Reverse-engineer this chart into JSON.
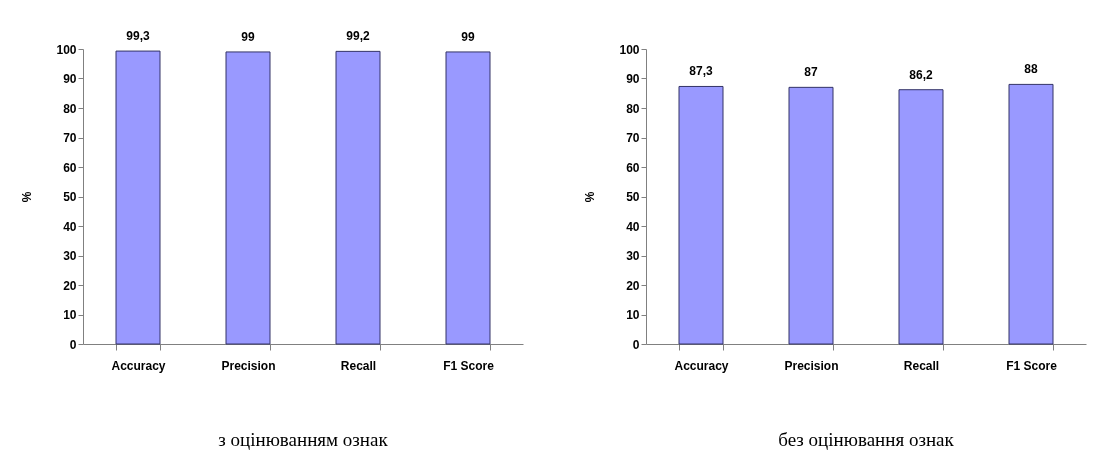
{
  "chart_data": [
    {
      "type": "bar",
      "title": "з оцінюванням ознак",
      "ylabel": "%",
      "categories": [
        "Accuracy",
        "Precision",
        "Recall",
        "F1 Score"
      ],
      "values": [
        99.3,
        99,
        99.2,
        99
      ],
      "value_labels": [
        "99,3",
        "99",
        "99,2",
        "99"
      ],
      "color": "#9999ff",
      "ylim": [
        0,
        100
      ],
      "yticks": [
        0,
        10,
        20,
        30,
        40,
        50,
        60,
        70,
        80,
        90,
        100
      ],
      "grid": false
    },
    {
      "type": "bar",
      "title": "без оцінювання ознак",
      "ylabel": "%",
      "categories": [
        "Accuracy",
        "Precision",
        "Recall",
        "F1 Score"
      ],
      "values": [
        87.3,
        87,
        86.2,
        88
      ],
      "value_labels": [
        "87,3",
        "87",
        "86,2",
        "88"
      ],
      "color": "#9999ff",
      "ylim": [
        0,
        100
      ],
      "yticks": [
        0,
        10,
        20,
        30,
        40,
        50,
        60,
        70,
        80,
        90,
        100
      ],
      "grid": false
    }
  ]
}
